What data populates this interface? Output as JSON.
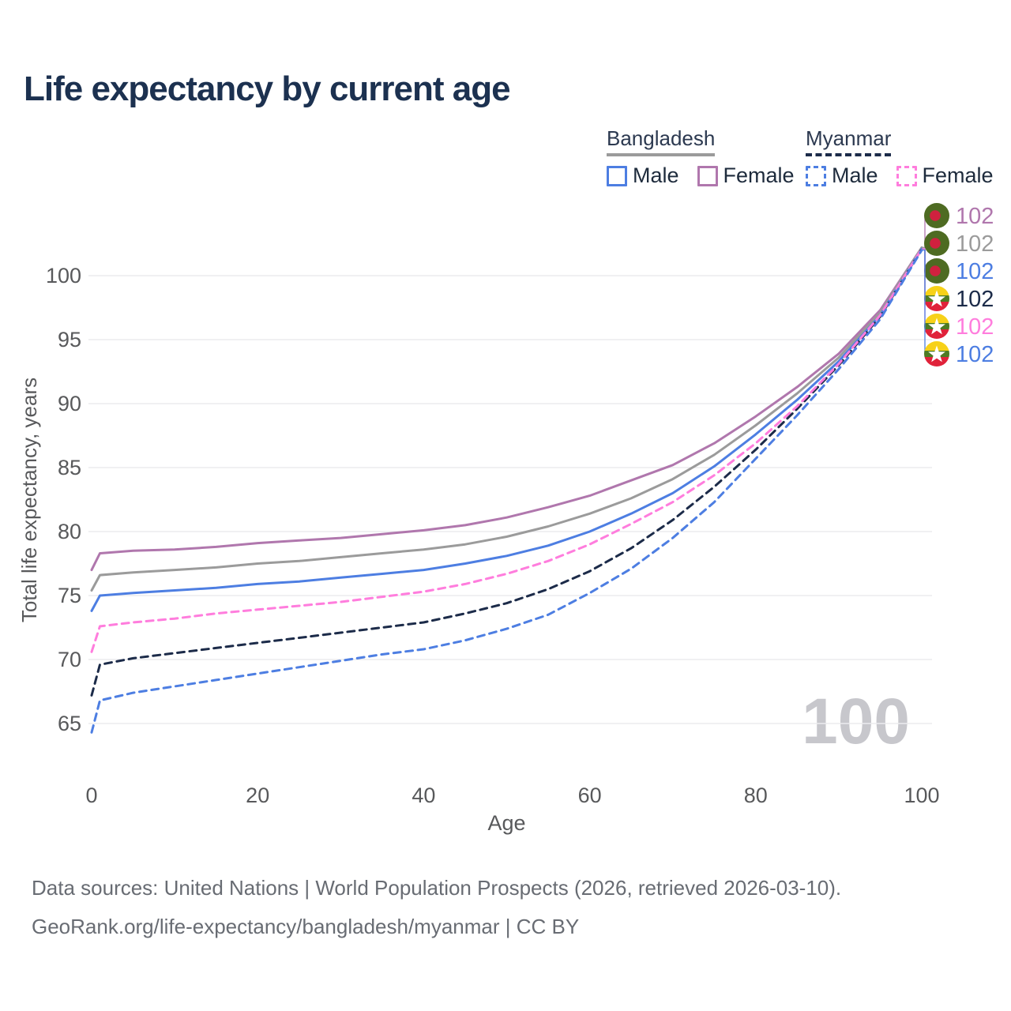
{
  "title": "Life expectancy by current age",
  "watermark": "100",
  "legend": {
    "groups": [
      {
        "label": "Bangladesh",
        "line_style": "solid",
        "underline_color": "#9b9b9b",
        "items": [
          {
            "label": "Male",
            "color": "#4d7ee2",
            "dashed": false
          },
          {
            "label": "Female",
            "color": "#b077ad",
            "dashed": false
          }
        ]
      },
      {
        "label": "Myanmar",
        "line_style": "dashed",
        "underline_color": "#1c2b49",
        "items": [
          {
            "label": "Male",
            "color": "#4d7ee2",
            "dashed": true
          },
          {
            "label": "Female",
            "color": "#ff7ddd",
            "dashed": true
          }
        ]
      }
    ]
  },
  "footer": {
    "line1": "Data sources: United Nations | World Population Prospects (2026, retrieved 2026-03-10).",
    "line2": "GeoRank.org/life-expectancy/bangladesh/myanmar | CC BY"
  },
  "chart_data": {
    "type": "line",
    "title": "Life expectancy by current age",
    "xlabel": "Age",
    "ylabel": "Total life expectancy, years",
    "xlim": [
      0,
      100
    ],
    "ylim": [
      63,
      103
    ],
    "xticks": [
      0,
      20,
      40,
      60,
      80,
      100
    ],
    "yticks": [
      65,
      70,
      75,
      80,
      85,
      90,
      95,
      100
    ],
    "grid": "horizontal-only",
    "legend_position": "top-right",
    "x": [
      0,
      1,
      5,
      10,
      15,
      20,
      25,
      30,
      35,
      40,
      45,
      50,
      55,
      60,
      65,
      70,
      75,
      80,
      85,
      90,
      95,
      100
    ],
    "series": [
      {
        "name": "Bangladesh Female",
        "country": "Bangladesh",
        "sex": "Female",
        "color": "#b077ad",
        "dashed": false,
        "flag": "bangladesh",
        "end_label": "102",
        "label_row": 0,
        "values": [
          77.0,
          78.3,
          78.5,
          78.6,
          78.8,
          79.1,
          79.3,
          79.5,
          79.8,
          80.1,
          80.5,
          81.1,
          81.9,
          82.8,
          84.0,
          85.2,
          86.9,
          89.0,
          91.3,
          93.9,
          97.3,
          102.2
        ]
      },
      {
        "name": "Bangladesh Both sexes",
        "country": "Bangladesh",
        "sex": "Both",
        "color": "#9b9b9b",
        "dashed": false,
        "flag": "bangladesh",
        "end_label": "102",
        "label_row": 1,
        "values": [
          75.4,
          76.6,
          76.8,
          77.0,
          77.2,
          77.5,
          77.7,
          78.0,
          78.3,
          78.6,
          79.0,
          79.6,
          80.4,
          81.4,
          82.6,
          84.1,
          86.0,
          88.3,
          90.8,
          93.6,
          97.1,
          102.2
        ]
      },
      {
        "name": "Bangladesh Male",
        "country": "Bangladesh",
        "sex": "Male",
        "color": "#4d7ee2",
        "dashed": false,
        "flag": "bangladesh",
        "end_label": "102",
        "label_row": 2,
        "values": [
          73.8,
          75.0,
          75.2,
          75.4,
          75.6,
          75.9,
          76.1,
          76.4,
          76.7,
          77.0,
          77.5,
          78.1,
          78.9,
          80.0,
          81.4,
          83.0,
          85.1,
          87.6,
          90.3,
          93.3,
          96.9,
          102.1
        ]
      },
      {
        "name": "Myanmar Both sexes",
        "country": "Myanmar",
        "sex": "Both",
        "color": "#1c2b49",
        "dashed": true,
        "flag": "myanmar",
        "end_label": "102",
        "label_row": 3,
        "values": [
          67.2,
          69.6,
          70.1,
          70.5,
          70.9,
          71.3,
          71.7,
          72.1,
          72.5,
          72.9,
          73.6,
          74.4,
          75.5,
          76.9,
          78.7,
          80.9,
          83.5,
          86.4,
          89.6,
          93.0,
          96.8,
          102.1
        ]
      },
      {
        "name": "Myanmar Female",
        "country": "Myanmar",
        "sex": "Female",
        "color": "#ff7ddd",
        "dashed": true,
        "flag": "myanmar",
        "end_label": "102",
        "label_row": 4,
        "values": [
          70.6,
          72.6,
          72.9,
          73.2,
          73.6,
          73.9,
          74.2,
          74.5,
          74.9,
          75.3,
          75.9,
          76.7,
          77.7,
          79.0,
          80.6,
          82.3,
          84.4,
          86.9,
          89.8,
          93.1,
          96.9,
          102.1
        ]
      },
      {
        "name": "Myanmar Male",
        "country": "Myanmar",
        "sex": "Male",
        "color": "#4d7ee2",
        "dashed": true,
        "flag": "myanmar",
        "end_label": "102",
        "label_row": 5,
        "values": [
          64.3,
          66.8,
          67.4,
          67.9,
          68.4,
          68.9,
          69.4,
          69.9,
          70.4,
          70.8,
          71.5,
          72.4,
          73.5,
          75.2,
          77.1,
          79.5,
          82.3,
          85.7,
          89.1,
          92.7,
          96.6,
          102.0
        ]
      }
    ],
    "flag_colors": {
      "bangladesh": {
        "field": "#4e6b22",
        "disc": "#d0213f"
      },
      "myanmar": {
        "top": "#f7d118",
        "middle": "#4e7b23",
        "bottom": "#e0223a",
        "star": "#ffffff"
      }
    }
  }
}
